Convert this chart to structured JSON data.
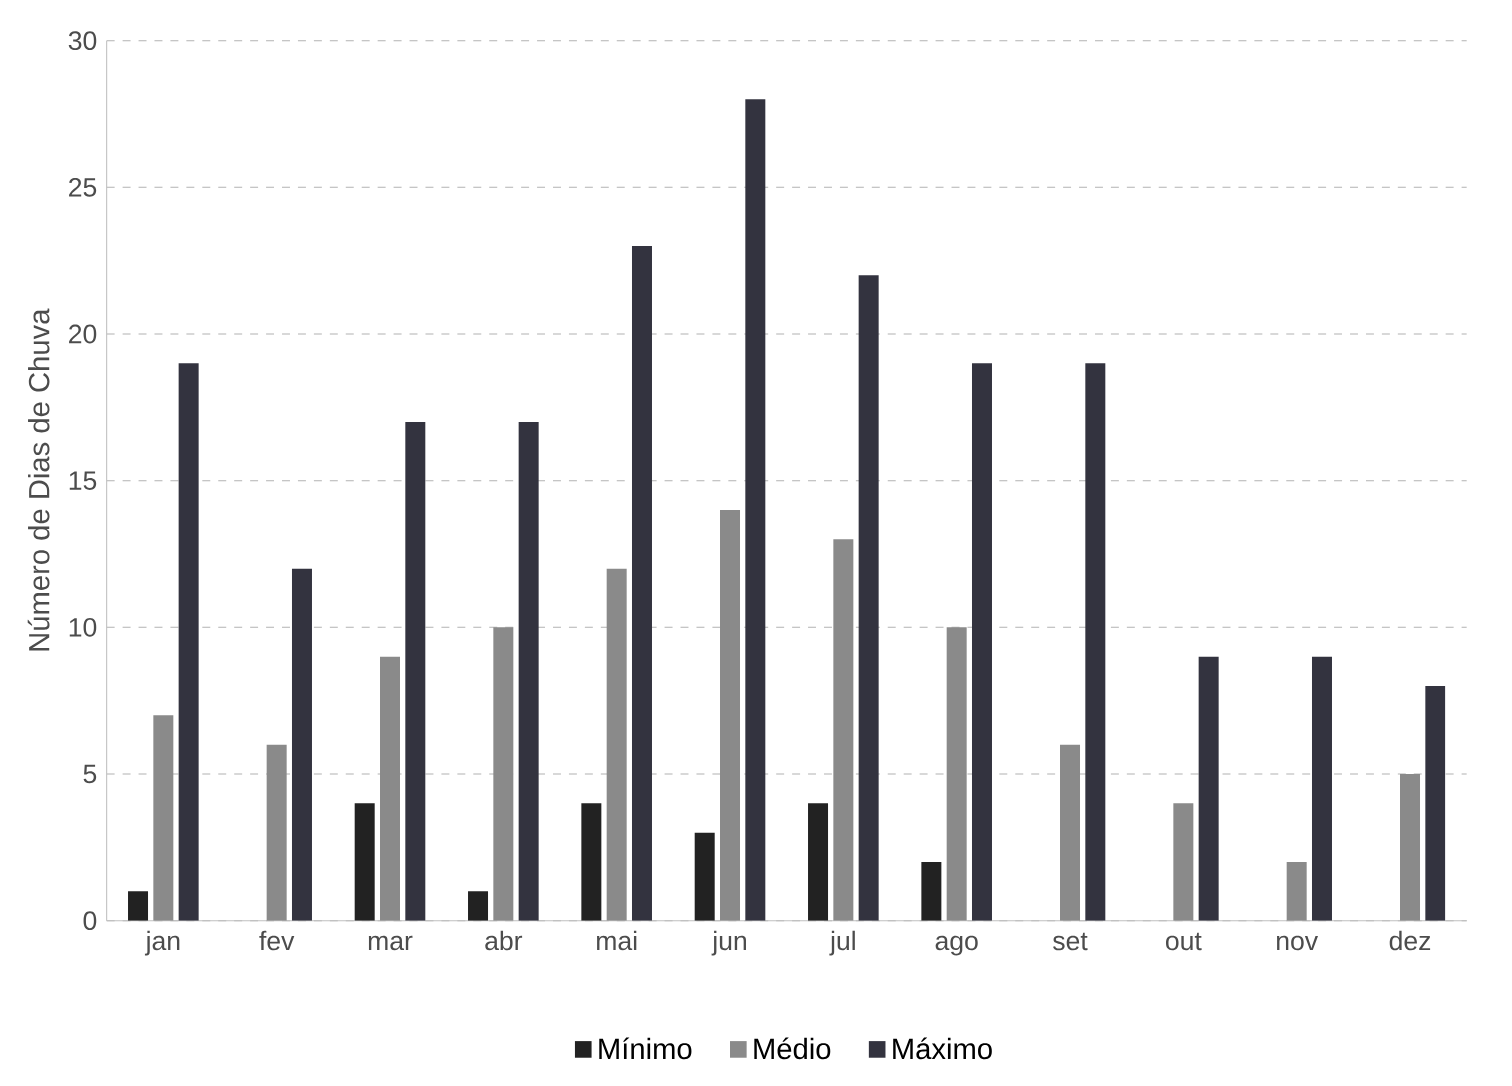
{
  "chart_data": {
    "type": "bar",
    "ylabel": "Número de Dias de Chuva",
    "categories": [
      "jan",
      "fev",
      "mar",
      "abr",
      "mai",
      "jun",
      "jul",
      "ago",
      "set",
      "out",
      "nov",
      "dez"
    ],
    "series": [
      {
        "name": "Mínimo",
        "color": "#222222",
        "values": [
          1,
          0,
          4,
          1,
          4,
          3,
          4,
          2,
          0,
          0,
          0,
          0
        ]
      },
      {
        "name": "Médio",
        "color": "#8a8a8a",
        "values": [
          7,
          6,
          9,
          10,
          12,
          14,
          13,
          10,
          6,
          4,
          2,
          5
        ]
      },
      {
        "name": "Máximo",
        "color": "#33333f",
        "values": [
          19,
          12,
          17,
          17,
          23,
          28,
          22,
          19,
          19,
          9,
          9,
          8
        ]
      }
    ],
    "ylim": [
      0,
      30
    ],
    "yticks": [
      0,
      5,
      10,
      15,
      20,
      25,
      30
    ],
    "grid": "y",
    "legend": "bottom"
  }
}
